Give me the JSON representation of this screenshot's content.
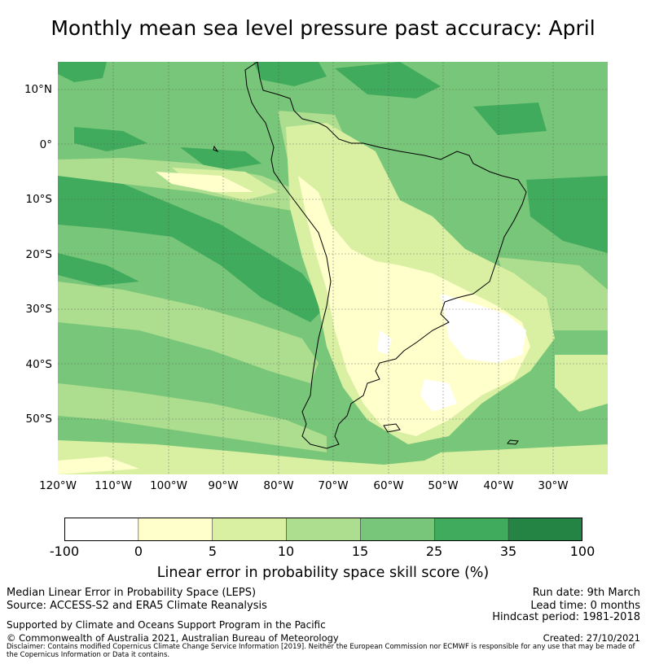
{
  "title": "Monthly mean sea level pressure past accuracy: April",
  "map": {
    "lat_ticks": [
      "10°N",
      "0°",
      "10°S",
      "20°S",
      "30°S",
      "40°S",
      "50°S"
    ],
    "lon_ticks": [
      "120°W",
      "110°W",
      "100°W",
      "90°W",
      "80°W",
      "70°W",
      "60°W",
      "50°W",
      "40°W",
      "30°W"
    ],
    "region": "South America and surrounding oceans"
  },
  "colorbar": {
    "ticks": [
      "-100",
      "0",
      "5",
      "10",
      "15",
      "25",
      "35",
      "100"
    ],
    "colors": [
      "#ffffff",
      "#ffffcc",
      "#d9f0a3",
      "#addd8e",
      "#78c679",
      "#41ab5d",
      "#238443"
    ],
    "label": "Linear error in probability space skill score (%)"
  },
  "footer": {
    "left1": "Median Linear Error in Probability Space (LEPS)",
    "left2": "Source: ACCESS-S2 and ERA5 Climate Reanalysis",
    "support": "Supported by Climate and Oceans Support Program in the Pacific",
    "copyright": "© Commonwealth of Australia 2021, Australian Bureau of Meteorology",
    "disclaimer": "Disclaimer: Contains modified Copernicus Climate Change Service Information [2019]. Neither the European Commission nor ECMWF is responsible for any use that may be made of the Copernicus Information or Data it contains.",
    "run_date": "Run date: 9th March",
    "lead_time": "Lead time: 0 months",
    "hindcast": "Hindcast period: 1981-2018",
    "created": "Created: 27/10/2021"
  }
}
